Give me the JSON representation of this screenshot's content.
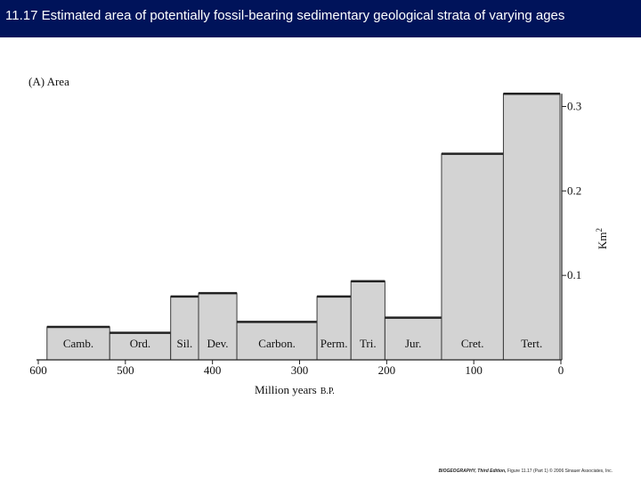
{
  "slide": {
    "title": "11.17 Estimated area of potentially fossil-bearing sedimentary geological strata of varying ages"
  },
  "chart_data": {
    "type": "bar",
    "panel_label": "(A) Area",
    "xlabel_main": "Million years",
    "xlabel_suffix": "B.P.",
    "ylabel_base": "Km",
    "ylabel_exp": "2",
    "xlim": [
      600,
      0
    ],
    "ylim": [
      0,
      0.315
    ],
    "x_ticks": [
      600,
      500,
      400,
      300,
      200,
      100,
      0
    ],
    "y_ticks": [
      0.1,
      0.2,
      0.3
    ],
    "y_tick_labels": [
      "0.1",
      "0.2",
      "0.3"
    ],
    "bar_fill": "#d3d3d3",
    "bar_stroke": "#3a3a3a",
    "bars": [
      {
        "label": "Camb.",
        "start": 590,
        "end": 518,
        "value": 0.039
      },
      {
        "label": "Ord.",
        "start": 518,
        "end": 448,
        "value": 0.032
      },
      {
        "label": "Sil.",
        "start": 448,
        "end": 416,
        "value": 0.075
      },
      {
        "label": "Dev.",
        "start": 416,
        "end": 372,
        "value": 0.079
      },
      {
        "label": "Carbon.",
        "start": 372,
        "end": 280,
        "value": 0.045
      },
      {
        "label": "Perm.",
        "start": 280,
        "end": 241,
        "value": 0.075
      },
      {
        "label": "Tri.",
        "start": 241,
        "end": 202,
        "value": 0.093
      },
      {
        "label": "Jur.",
        "start": 202,
        "end": 137,
        "value": 0.05
      },
      {
        "label": "Cret.",
        "start": 137,
        "end": 66,
        "value": 0.244
      },
      {
        "label": "Tert.",
        "start": 66,
        "end": 1,
        "value": 0.315
      }
    ]
  },
  "credit": {
    "book": "BIOGEOGRAPHY, Third Edition,",
    "figure": " Figure 11.17 (Part 1)  © 2006 Sinauer Associates, Inc."
  }
}
